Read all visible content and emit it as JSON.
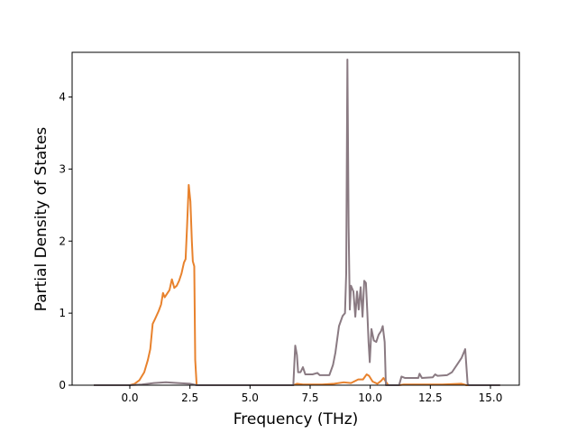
{
  "chart_data": {
    "type": "line",
    "title": "",
    "xlabel": "Frequency (THz)",
    "ylabel": "Partial Density of States",
    "xlim": [
      -2.4,
      16.2
    ],
    "ylim": [
      0,
      4.62
    ],
    "xticks": [
      0.0,
      2.5,
      5.0,
      7.5,
      10.0,
      12.5,
      15.0
    ],
    "xtick_labels": [
      "0.0",
      "2.5",
      "5.0",
      "7.5",
      "10.0",
      "12.5",
      "15.0"
    ],
    "yticks": [
      0,
      1,
      2,
      3,
      4
    ],
    "ytick_labels": [
      "0",
      "1",
      "2",
      "3",
      "4"
    ],
    "grid": false,
    "legend": "none",
    "series": [
      {
        "color": "#e8822d",
        "points": [
          [
            -1.5,
            0
          ],
          [
            -0.5,
            0
          ],
          [
            0.0,
            0.0
          ],
          [
            0.2,
            0.02
          ],
          [
            0.4,
            0.07
          ],
          [
            0.6,
            0.18
          ],
          [
            0.75,
            0.35
          ],
          [
            0.85,
            0.5
          ],
          [
            0.95,
            0.85
          ],
          [
            1.05,
            0.92
          ],
          [
            1.2,
            1.03
          ],
          [
            1.3,
            1.12
          ],
          [
            1.38,
            1.28
          ],
          [
            1.45,
            1.22
          ],
          [
            1.55,
            1.27
          ],
          [
            1.65,
            1.32
          ],
          [
            1.75,
            1.47
          ],
          [
            1.85,
            1.35
          ],
          [
            1.95,
            1.38
          ],
          [
            2.05,
            1.45
          ],
          [
            2.15,
            1.55
          ],
          [
            2.25,
            1.7
          ],
          [
            2.32,
            1.75
          ],
          [
            2.38,
            2.2
          ],
          [
            2.45,
            2.78
          ],
          [
            2.52,
            2.55
          ],
          [
            2.58,
            2.0
          ],
          [
            2.62,
            1.72
          ],
          [
            2.68,
            1.65
          ],
          [
            2.72,
            0.35
          ],
          [
            2.78,
            0.0
          ],
          [
            3.5,
            0
          ],
          [
            6.8,
            0
          ],
          [
            6.95,
            0.02
          ],
          [
            7.2,
            0.01
          ],
          [
            8.0,
            0.01
          ],
          [
            8.5,
            0.02
          ],
          [
            8.9,
            0.04
          ],
          [
            9.2,
            0.03
          ],
          [
            9.5,
            0.08
          ],
          [
            9.7,
            0.08
          ],
          [
            9.85,
            0.15
          ],
          [
            9.95,
            0.13
          ],
          [
            10.1,
            0.05
          ],
          [
            10.3,
            0.02
          ],
          [
            10.45,
            0.06
          ],
          [
            10.55,
            0.1
          ],
          [
            10.65,
            0.05
          ],
          [
            10.75,
            0.0
          ],
          [
            11.2,
            0
          ],
          [
            11.4,
            0.01
          ],
          [
            12.0,
            0.01
          ],
          [
            13.0,
            0.01
          ],
          [
            13.8,
            0.02
          ],
          [
            14.0,
            0.0
          ],
          [
            15.4,
            0
          ]
        ]
      },
      {
        "color": "#8a7a82",
        "points": [
          [
            -1.5,
            0
          ],
          [
            0.0,
            0
          ],
          [
            0.5,
            0.01
          ],
          [
            1.0,
            0.03
          ],
          [
            1.5,
            0.04
          ],
          [
            2.0,
            0.03
          ],
          [
            2.5,
            0.02
          ],
          [
            2.78,
            0.0
          ],
          [
            3.5,
            0
          ],
          [
            6.8,
            0
          ],
          [
            6.88,
            0.55
          ],
          [
            6.95,
            0.42
          ],
          [
            7.0,
            0.18
          ],
          [
            7.1,
            0.18
          ],
          [
            7.2,
            0.25
          ],
          [
            7.3,
            0.15
          ],
          [
            7.6,
            0.15
          ],
          [
            7.8,
            0.17
          ],
          [
            7.9,
            0.14
          ],
          [
            8.3,
            0.14
          ],
          [
            8.45,
            0.28
          ],
          [
            8.55,
            0.45
          ],
          [
            8.7,
            0.82
          ],
          [
            8.85,
            0.96
          ],
          [
            8.95,
            1.0
          ],
          [
            9.0,
            1.55
          ],
          [
            9.05,
            4.52
          ],
          [
            9.1,
            2.2
          ],
          [
            9.15,
            1.05
          ],
          [
            9.2,
            1.38
          ],
          [
            9.3,
            1.3
          ],
          [
            9.38,
            0.95
          ],
          [
            9.45,
            1.3
          ],
          [
            9.52,
            1.05
          ],
          [
            9.6,
            1.36
          ],
          [
            9.68,
            0.95
          ],
          [
            9.75,
            1.45
          ],
          [
            9.82,
            1.42
          ],
          [
            9.88,
            1.0
          ],
          [
            9.93,
            0.6
          ],
          [
            9.98,
            0.32
          ],
          [
            10.05,
            0.78
          ],
          [
            10.15,
            0.62
          ],
          [
            10.25,
            0.6
          ],
          [
            10.35,
            0.7
          ],
          [
            10.45,
            0.75
          ],
          [
            10.52,
            0.82
          ],
          [
            10.6,
            0.6
          ],
          [
            10.65,
            0.0
          ],
          [
            11.2,
            0
          ],
          [
            11.3,
            0.12
          ],
          [
            11.45,
            0.1
          ],
          [
            12.0,
            0.1
          ],
          [
            12.05,
            0.16
          ],
          [
            12.15,
            0.1
          ],
          [
            12.6,
            0.11
          ],
          [
            12.7,
            0.15
          ],
          [
            12.8,
            0.13
          ],
          [
            13.2,
            0.14
          ],
          [
            13.4,
            0.18
          ],
          [
            13.6,
            0.28
          ],
          [
            13.8,
            0.38
          ],
          [
            13.95,
            0.5
          ],
          [
            14.05,
            0.02
          ],
          [
            14.1,
            0.0
          ],
          [
            15.4,
            0
          ]
        ]
      }
    ]
  }
}
